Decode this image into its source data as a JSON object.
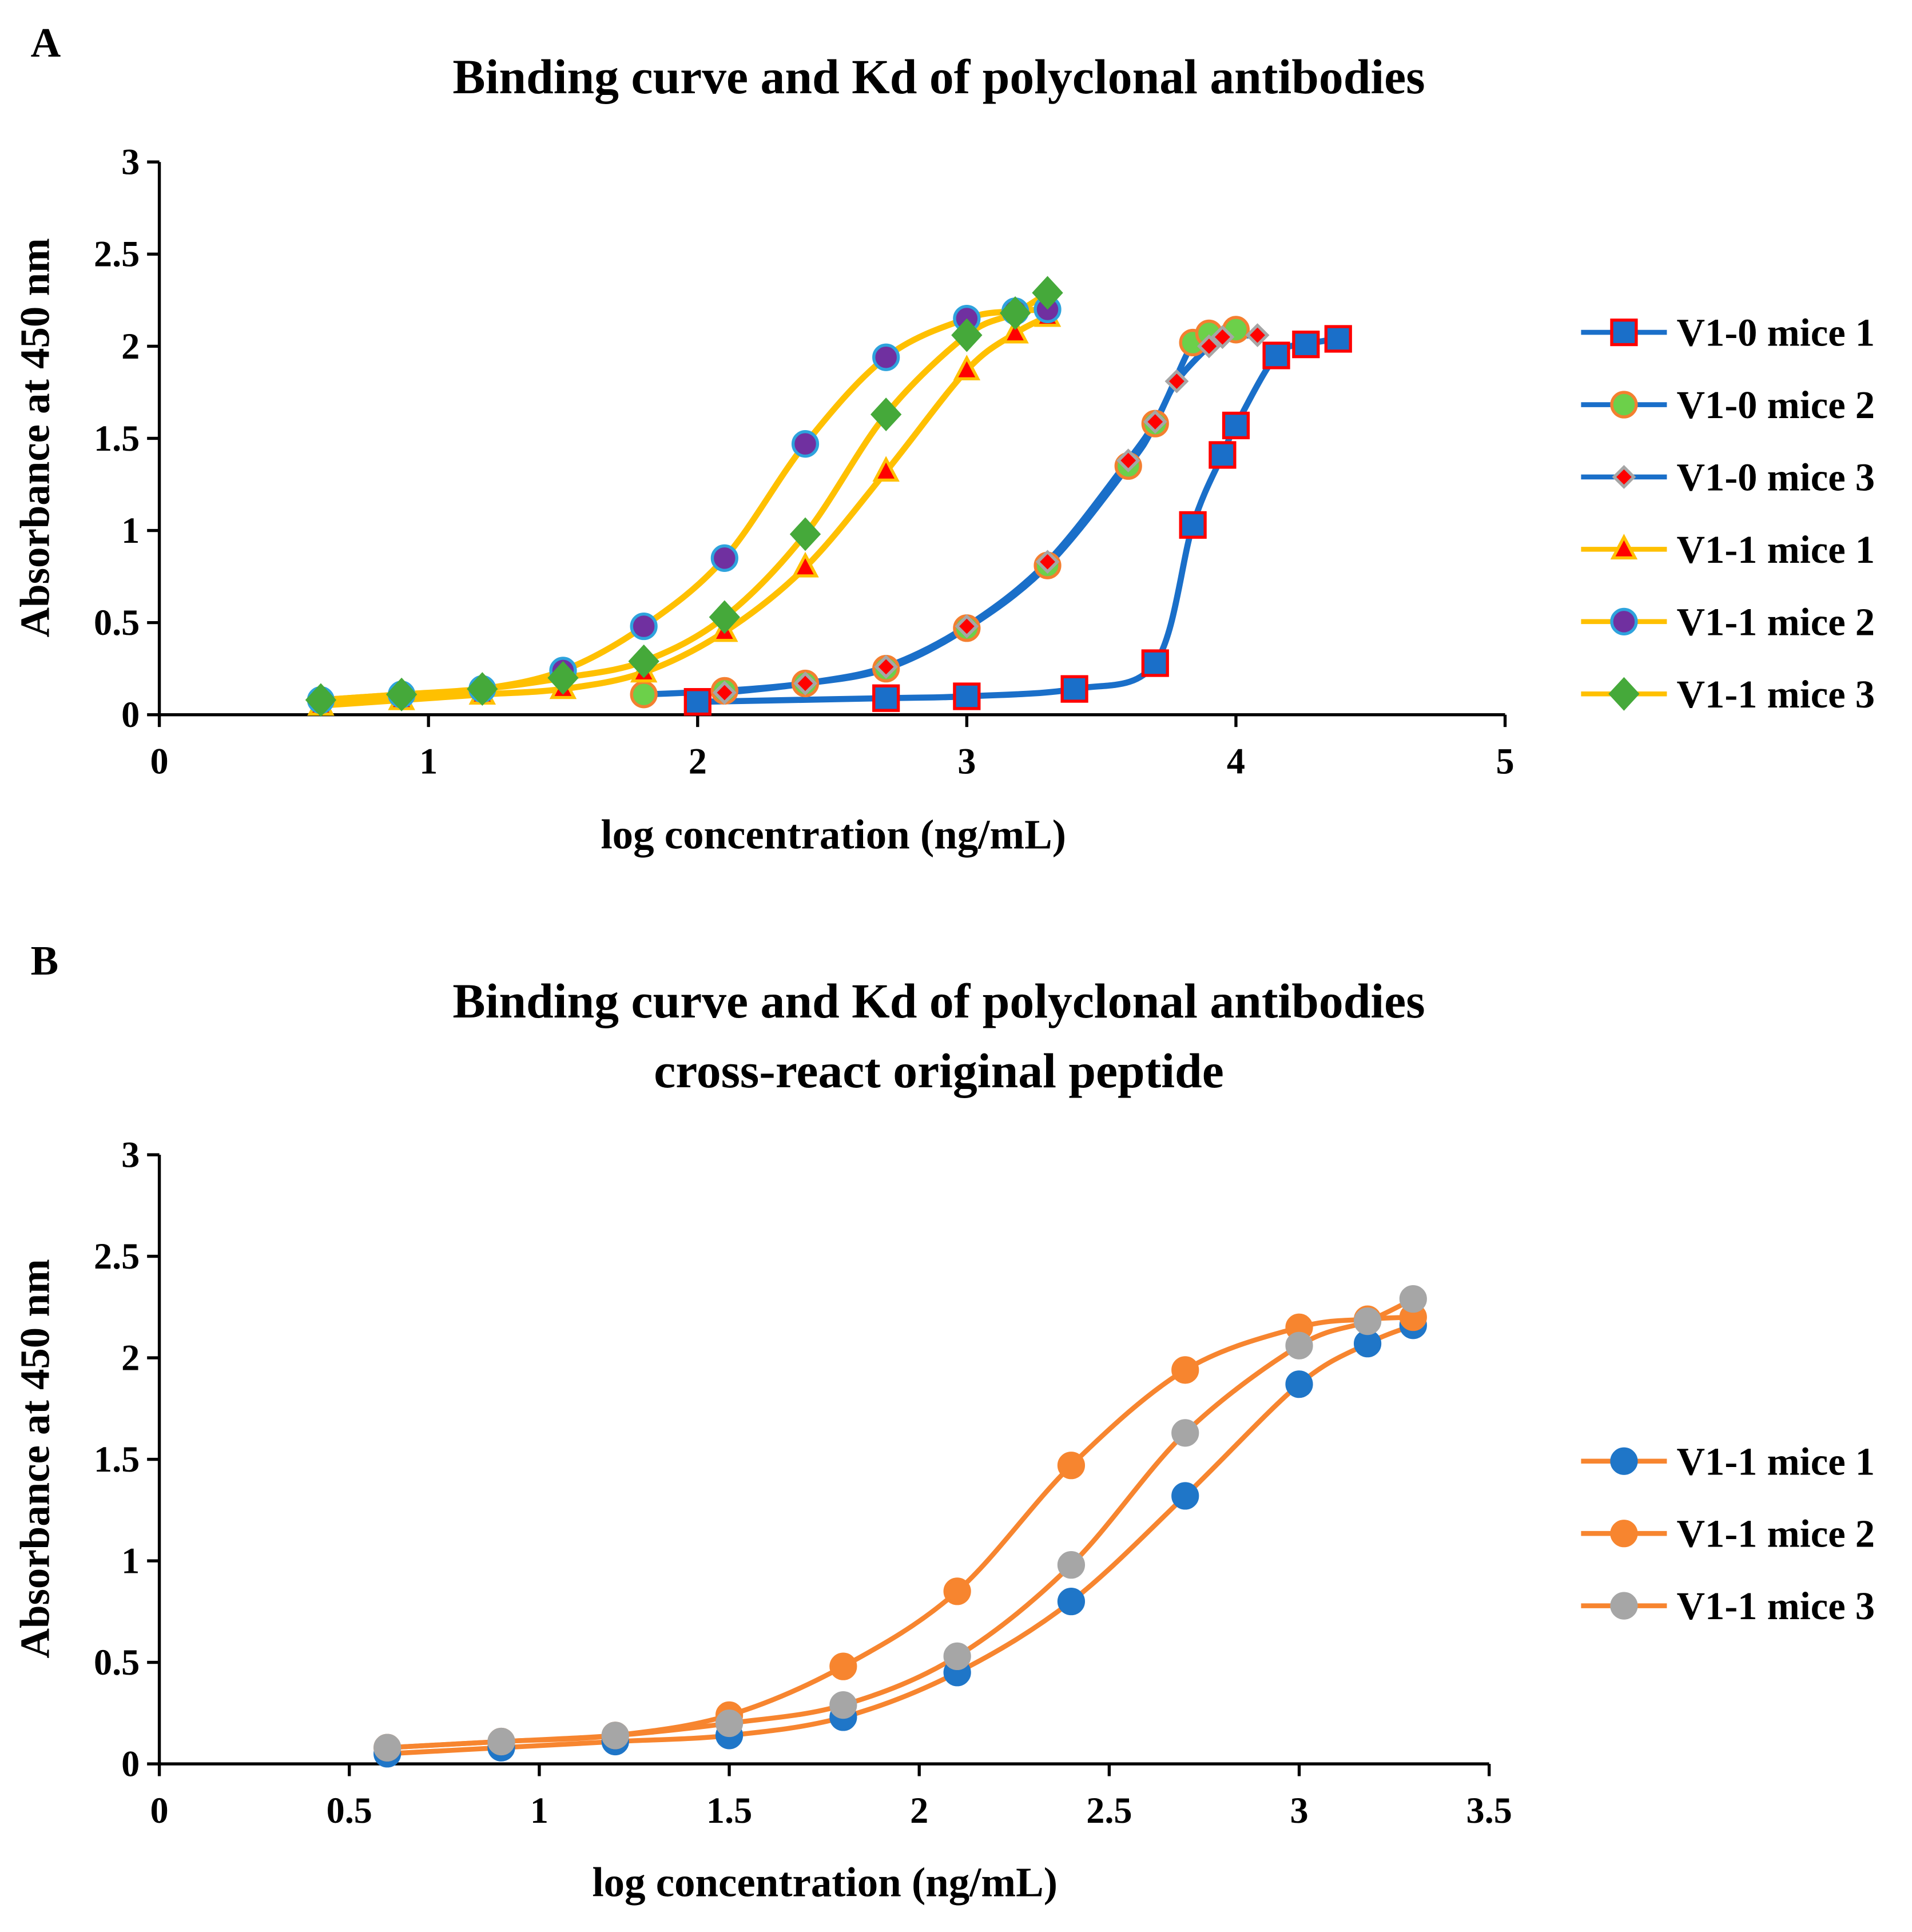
{
  "chart_data": [
    {
      "panel_label": "A",
      "type": "line",
      "title": "Binding curve and Kd of polyclonal antibodies",
      "xlabel": "log concentration (ng/mL)",
      "ylabel": "Absorbance at 450 nm",
      "xlim": [
        0,
        5
      ],
      "ylim": [
        0,
        3
      ],
      "xticks": [
        "0",
        "1",
        "2",
        "3",
        "4",
        "5"
      ],
      "yticks": [
        "0",
        "0.5",
        "1",
        "1.5",
        "2",
        "2.5",
        "3"
      ],
      "legend_position": "right",
      "series": [
        {
          "name": "V1-0 mice 1",
          "line": "#1a6fc9",
          "marker": "square",
          "fill": "#1a6fc9",
          "stroke": "#ff0000",
          "x": [
            2.0,
            2.7,
            3.0,
            3.4,
            3.7,
            3.84,
            3.95,
            4.0,
            4.15,
            4.26,
            4.38
          ],
          "y": [
            0.07,
            0.09,
            0.1,
            0.14,
            0.28,
            1.03,
            1.41,
            1.57,
            1.95,
            2.01,
            2.04
          ]
        },
        {
          "name": "V1-0 mice 2",
          "line": "#1a6fc9",
          "marker": "circle",
          "fill": "#6cd04a",
          "stroke": "#f47f30",
          "x": [
            1.8,
            2.1,
            2.4,
            2.7,
            3.0,
            3.3,
            3.6,
            3.7,
            3.84,
            3.9,
            4.0
          ],
          "y": [
            0.11,
            0.13,
            0.17,
            0.25,
            0.47,
            0.81,
            1.35,
            1.58,
            2.02,
            2.07,
            2.09
          ]
        },
        {
          "name": "V1-0 mice 3",
          "line": "#1a6fc9",
          "marker": "diamond-small",
          "fill": "#ff0000",
          "stroke": "#a6a6a6",
          "x": [
            2.1,
            2.4,
            2.7,
            3.0,
            3.3,
            3.6,
            3.7,
            3.78,
            3.9,
            3.95,
            4.08
          ],
          "y": [
            0.12,
            0.17,
            0.26,
            0.48,
            0.83,
            1.38,
            1.59,
            1.81,
            2.0,
            2.05,
            2.06
          ]
        },
        {
          "name": "V1-1 mice 1",
          "line": "#ffc000",
          "marker": "triangle",
          "fill": "#ff0000",
          "stroke": "#ffc000",
          "x": [
            0.6,
            0.9,
            1.2,
            1.5,
            1.8,
            2.1,
            2.4,
            2.7,
            3.0,
            3.18,
            3.3
          ],
          "y": [
            0.05,
            0.08,
            0.11,
            0.14,
            0.23,
            0.45,
            0.8,
            1.32,
            1.87,
            2.07,
            2.16
          ]
        },
        {
          "name": "V1-1 mice 2",
          "line": "#ffc000",
          "marker": "circle",
          "fill": "#7030a0",
          "stroke": "#2ea3dd",
          "x": [
            0.6,
            0.9,
            1.2,
            1.5,
            1.8,
            2.1,
            2.4,
            2.7,
            3.0,
            3.18,
            3.3
          ],
          "y": [
            0.08,
            0.11,
            0.14,
            0.24,
            0.48,
            0.85,
            1.47,
            1.94,
            2.15,
            2.19,
            2.2
          ]
        },
        {
          "name": "V1-1 mice 3",
          "line": "#ffc000",
          "marker": "diamond",
          "fill": "#45a93a",
          "stroke": "#45a93a",
          "x": [
            0.6,
            0.9,
            1.2,
            1.5,
            1.8,
            2.1,
            2.4,
            2.7,
            3.0,
            3.18,
            3.3
          ],
          "y": [
            0.08,
            0.11,
            0.14,
            0.2,
            0.29,
            0.53,
            0.98,
            1.63,
            2.06,
            2.18,
            2.29
          ]
        }
      ]
    },
    {
      "panel_label": "B",
      "type": "line",
      "title": [
        "Binding curve and Kd of polyclonal antibodies",
        "cross-react original peptide"
      ],
      "xlabel": "log concentration (ng/mL)",
      "ylabel": "Absorbance at 450 nm",
      "xlim": [
        0,
        3.5
      ],
      "ylim": [
        0,
        3
      ],
      "xticks": [
        "0",
        "0.5",
        "1",
        "1.5",
        "2",
        "2.5",
        "3",
        "3.5"
      ],
      "yticks": [
        "0",
        "0.5",
        "1",
        "1.5",
        "2",
        "2.5",
        "3"
      ],
      "legend_position": "right",
      "series": [
        {
          "name": "V1-1 mice 1",
          "line": "#f7852f",
          "marker": "circle",
          "fill": "#1f76c8",
          "stroke": "#1f76c8",
          "x": [
            0.6,
            0.9,
            1.2,
            1.5,
            1.8,
            2.1,
            2.4,
            2.7,
            3.0,
            3.18,
            3.3
          ],
          "y": [
            0.05,
            0.08,
            0.11,
            0.14,
            0.23,
            0.45,
            0.8,
            1.32,
            1.87,
            2.07,
            2.16
          ]
        },
        {
          "name": "V1-1 mice 2",
          "line": "#f7852f",
          "marker": "circle",
          "fill": "#f7852f",
          "stroke": "#f7852f",
          "x": [
            0.6,
            0.9,
            1.2,
            1.5,
            1.8,
            2.1,
            2.4,
            2.7,
            3.0,
            3.18,
            3.3
          ],
          "y": [
            0.08,
            0.11,
            0.14,
            0.24,
            0.48,
            0.85,
            1.47,
            1.94,
            2.15,
            2.19,
            2.2
          ]
        },
        {
          "name": "V1-1 mice 3",
          "line": "#f7852f",
          "marker": "circle",
          "fill": "#a6a6a6",
          "stroke": "#a6a6a6",
          "x": [
            0.6,
            0.9,
            1.2,
            1.5,
            1.8,
            2.1,
            2.4,
            2.7,
            3.0,
            3.18,
            3.3
          ],
          "y": [
            0.08,
            0.11,
            0.14,
            0.2,
            0.29,
            0.53,
            0.98,
            1.63,
            2.06,
            2.18,
            2.29
          ]
        }
      ]
    }
  ]
}
